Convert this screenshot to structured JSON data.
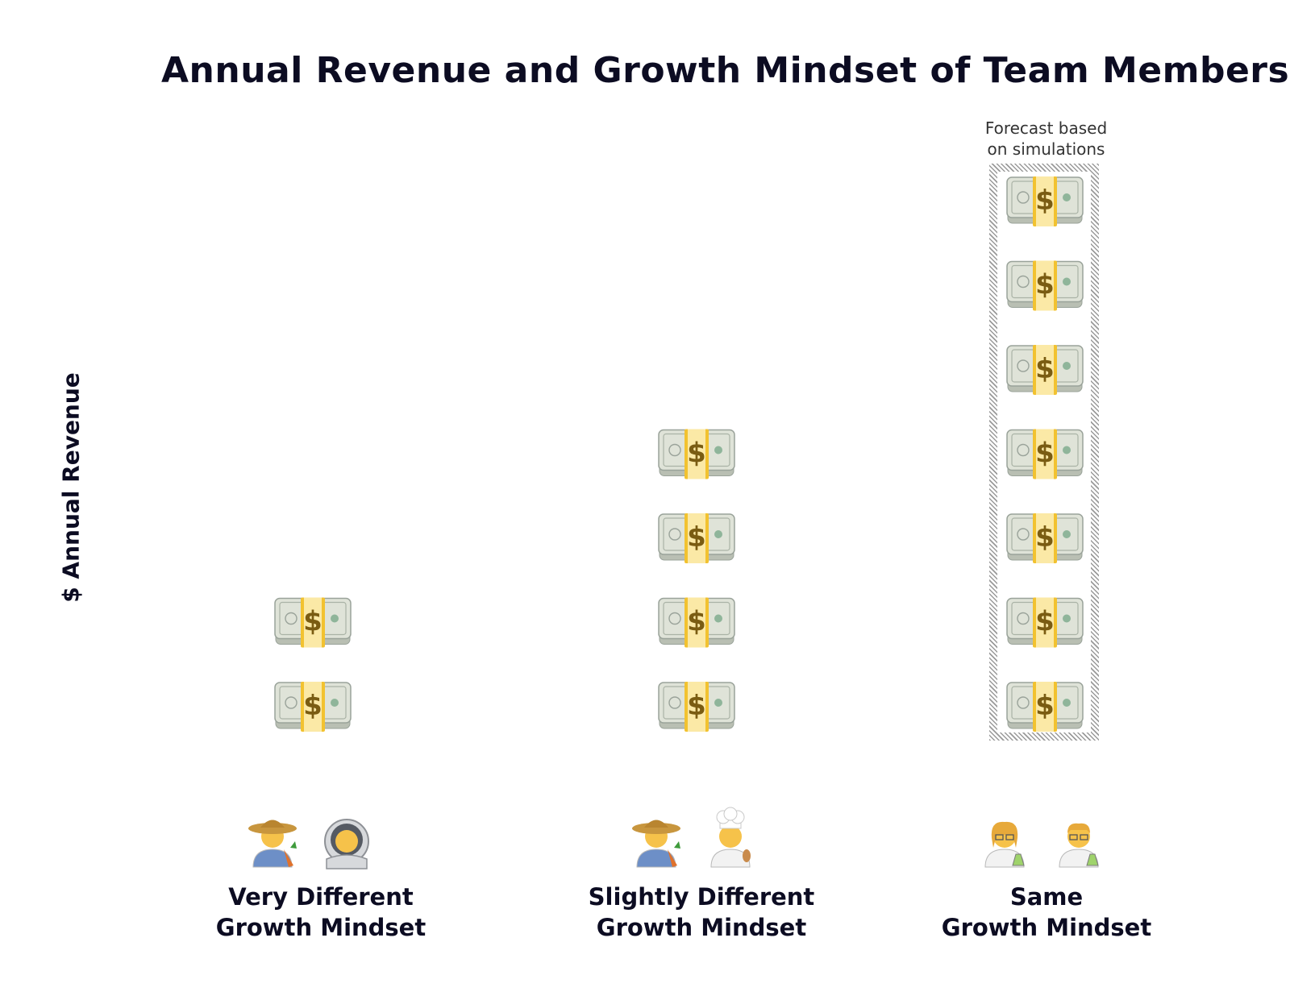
{
  "chart_data": {
    "type": "bar",
    "title": "Annual Revenue and Growth Mindset of Team Members",
    "ylabel": "$ Annual Revenue",
    "xlabel": "",
    "categories": [
      "Very Different\nGrowth Mindset",
      "Slightly Different\nGrowth Mindset",
      "Same\nGrowth Mindset"
    ],
    "values": [
      2,
      4,
      7
    ],
    "unit_icon": "money-stack-icon",
    "category_icons": [
      [
        "farmer-icon",
        "astronaut-icon"
      ],
      [
        "farmer-icon",
        "cook-icon"
      ],
      [
        "scientist-woman-icon",
        "scientist-man-icon"
      ]
    ],
    "annotation": "Forecast based\non simulations",
    "annotated_category_index": 2,
    "colors": {
      "bill": "#dfe3d8",
      "bill_edge": "#9aa39a",
      "band": "#f2c230",
      "dollar": "#7a5c12"
    }
  }
}
